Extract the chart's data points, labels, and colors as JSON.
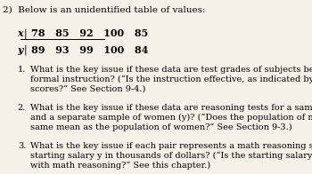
{
  "title": "2)  Below is an unidentified table of values:",
  "table_x_label": "x",
  "table_y_label": "y",
  "table_x_values": "78   85   92   100   85",
  "table_y_values": "89   93   99   100   84",
  "items": [
    {
      "num": "1.",
      "text": "What is the key issue if these data are test grades of subjects before and after\nformal instruction? (“Is the instruction effective, as indicated by higher y\nscores?” See Section 9-4.)"
    },
    {
      "num": "2.",
      "text": "What is the key issue if these data are reasoning tests for a sample of men (x)\nand a separate sample of women (y)? (“Does the population of men have the\nsame mean as the population of women?” See Section 9-3.)"
    },
    {
      "num": "3.",
      "text": "What is the key issue if each pair represents a math reasoning score x and a\nstarting salary y in thousands of dollars? (“Is the starting salary associated\nwith math reasoning?” See this chapter.)"
    }
  ],
  "bg_color": "#f5f0e8",
  "font_size": 7.0,
  "title_font_size": 7.5
}
